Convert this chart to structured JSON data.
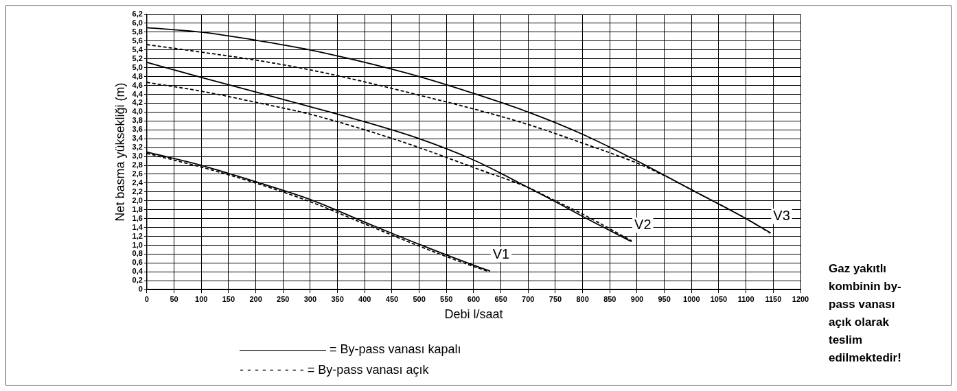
{
  "chart_data": {
    "type": "line",
    "xlabel": "Debi l/saat",
    "ylabel": "Net basma yüksekliği (m)",
    "xlim": [
      0,
      1200
    ],
    "ylim": [
      0,
      6.2
    ],
    "xticks": [
      0,
      50,
      100,
      150,
      200,
      250,
      300,
      350,
      400,
      450,
      500,
      550,
      600,
      650,
      700,
      750,
      800,
      850,
      900,
      950,
      1000,
      1050,
      1100,
      1150,
      1200
    ],
    "yticks": [
      0,
      {
        "value": 0.2,
        "label": "0,2"
      },
      {
        "value": 0.4,
        "label": "0,4"
      },
      {
        "value": 0.6,
        "label": "0,6"
      },
      {
        "value": 0.8,
        "label": "0,8"
      },
      {
        "value": 1,
        "label": "1,0"
      },
      {
        "value": 1.2,
        "label": "1,2"
      },
      {
        "value": 1.4,
        "label": "1,4"
      },
      {
        "value": 1.6,
        "label": "1,6"
      },
      {
        "value": 1.8,
        "label": "1,8"
      },
      {
        "value": 2,
        "label": "2,0"
      },
      {
        "value": 2.2,
        "label": "2,2"
      },
      {
        "value": 2.4,
        "label": "2,4"
      },
      {
        "value": 2.6,
        "label": "2,6"
      },
      {
        "value": 2.8,
        "label": "2,8"
      },
      {
        "value": 3,
        "label": "3,0"
      },
      {
        "value": 3.2,
        "label": "3,2"
      },
      {
        "value": 3.4,
        "label": "3,4"
      },
      {
        "value": 3.6,
        "label": "3,6"
      },
      {
        "value": 3.8,
        "label": "3,8"
      },
      {
        "value": 4,
        "label": "4,0"
      },
      {
        "value": 4.2,
        "label": "4,2"
      },
      {
        "value": 4.4,
        "label": "4,4"
      },
      {
        "value": 4.6,
        "label": "4,6"
      },
      {
        "value": 4.8,
        "label": "4,8"
      },
      {
        "value": 5,
        "label": "5,0"
      },
      {
        "value": 5.2,
        "label": "5,2"
      },
      {
        "value": 5.4,
        "label": "5,4"
      },
      {
        "value": 5.6,
        "label": "5,6"
      },
      {
        "value": 5.8,
        "label": "5,8"
      },
      {
        "value": 6,
        "label": "6,0"
      },
      {
        "value": 6.2,
        "label": "6,2"
      }
    ],
    "grid": true,
    "legend": false,
    "marker": "none",
    "series": [
      {
        "name": "V3",
        "color": "#000000",
        "line_style": "solid",
        "x": [
          0,
          100,
          200,
          300,
          400,
          500,
          600,
          700,
          800,
          900,
          1000,
          1100,
          1145
        ],
        "values": [
          5.9,
          5.8,
          5.62,
          5.4,
          5.12,
          4.8,
          4.42,
          4.0,
          3.5,
          2.9,
          2.25,
          1.6,
          1.28
        ]
      },
      {
        "color": "#000000",
        "line_style": "dashed",
        "x": [
          0,
          100,
          200,
          300,
          400,
          500,
          600,
          700,
          800,
          900,
          950,
          1000,
          1100,
          1145
        ],
        "values": [
          5.52,
          5.35,
          5.17,
          4.95,
          4.68,
          4.38,
          4.07,
          3.72,
          3.3,
          2.85,
          2.57,
          2.25,
          1.6,
          1.27
        ]
      },
      {
        "name": "V2",
        "color": "#000000",
        "line_style": "solid",
        "x": [
          0,
          100,
          200,
          300,
          400,
          500,
          600,
          650,
          700,
          750,
          800,
          890
        ],
        "values": [
          5.12,
          4.78,
          4.45,
          4.12,
          3.78,
          3.4,
          2.92,
          2.62,
          2.3,
          1.98,
          1.65,
          1.08
        ]
      },
      {
        "color": "#000000",
        "line_style": "dashed",
        "x": [
          0,
          100,
          200,
          300,
          400,
          500,
          600,
          700,
          750,
          800,
          890
        ],
        "values": [
          4.67,
          4.47,
          4.22,
          3.95,
          3.6,
          3.2,
          2.75,
          2.3,
          2.0,
          1.7,
          1.1
        ]
      },
      {
        "name": "V1",
        "color": "#000000",
        "line_style": "solid",
        "x": [
          0,
          100,
          200,
          300,
          400,
          500,
          600,
          630
        ],
        "values": [
          3.1,
          2.8,
          2.43,
          2.03,
          1.52,
          1.02,
          0.55,
          0.42
        ]
      },
      {
        "color": "#000000",
        "line_style": "dashed",
        "x": [
          0,
          100,
          200,
          300,
          400,
          500,
          600,
          630
        ],
        "values": [
          3.07,
          2.76,
          2.4,
          1.98,
          1.48,
          0.98,
          0.52,
          0.4
        ]
      }
    ],
    "annotations": [
      "——————— = By-pass vanası kapalı",
      "- - - - - - - - - = By-pass vanası açık",
      "Gaz yakıtlı kombinin by-pass vanası açık olarak teslim edilmektedir!"
    ]
  }
}
